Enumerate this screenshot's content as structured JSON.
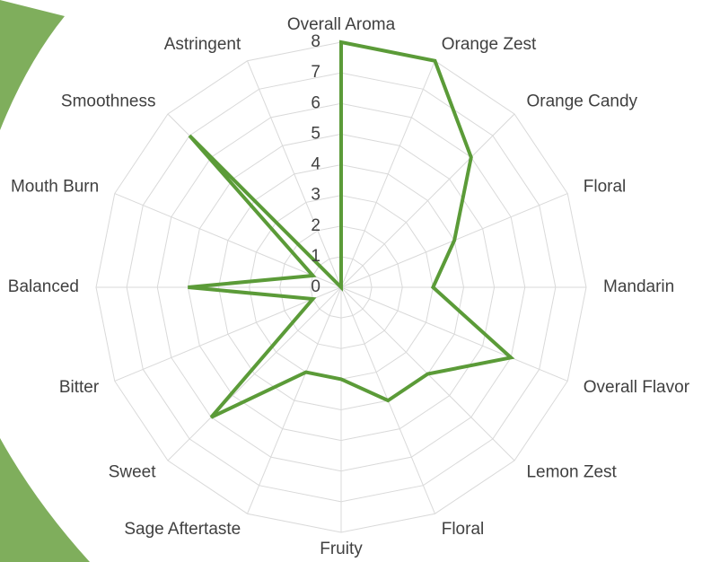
{
  "chart_data": {
    "type": "radar",
    "categories": [
      "Overall Aroma",
      "Orange Zest",
      "Orange Candy",
      "Floral",
      "Mandarin",
      "Overall Flavor",
      "Lemon Zest",
      "Floral",
      "Fruity",
      "Sage Aftertaste",
      "Sweet",
      "Bitter",
      "Balanced",
      "Mouth Burn",
      "Smoothness",
      "Astringent"
    ],
    "values": [
      8,
      8,
      6,
      4,
      3,
      6,
      4,
      4,
      3,
      3,
      6,
      1,
      5,
      1,
      7,
      0
    ],
    "color": "#5b9b38",
    "ylim": [
      0,
      8
    ],
    "yticks": [
      0,
      1,
      2,
      3,
      4,
      5,
      6,
      7,
      8
    ],
    "grid": true
  }
}
